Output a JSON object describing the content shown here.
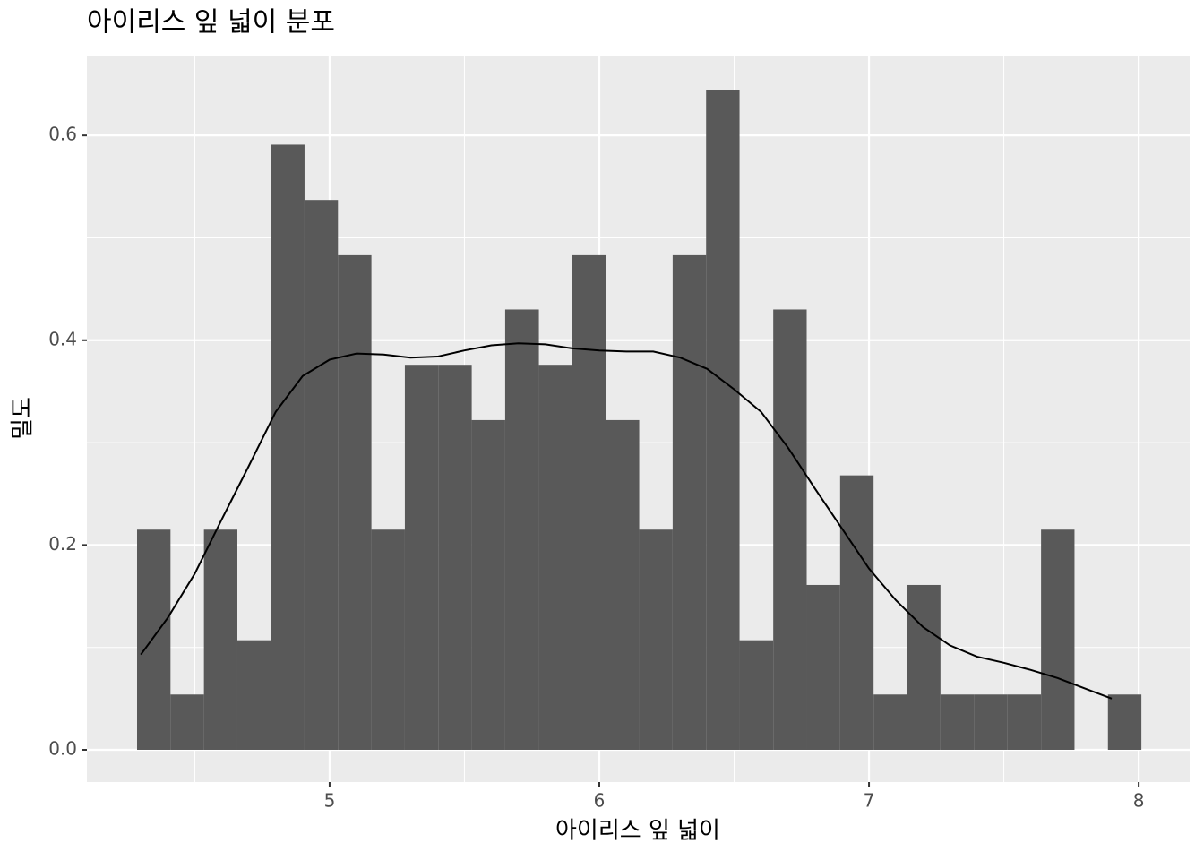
{
  "chart_data": {
    "type": "histogram",
    "title": "아이리스 잎 넓이 분포",
    "x_label": "아이리스 잎 넓이",
    "y_label": "밀도",
    "bins": [
      4.286,
      4.41,
      4.534,
      4.658,
      4.782,
      4.907,
      5.031,
      5.155,
      5.279,
      5.403,
      5.527,
      5.651,
      5.776,
      5.9,
      6.024,
      6.148,
      6.272,
      6.396,
      6.52,
      6.645,
      6.769,
      6.893,
      7.017,
      7.141,
      7.265,
      7.389,
      7.514,
      7.638,
      7.762,
      7.886,
      8.01
    ],
    "values": [
      0.215,
      0.054,
      0.215,
      0.107,
      0.591,
      0.537,
      0.483,
      0.215,
      0.376,
      0.376,
      0.322,
      0.43,
      0.376,
      0.483,
      0.322,
      0.215,
      0.483,
      0.644,
      0.107,
      0.43,
      0.161,
      0.268,
      0.054,
      0.161,
      0.054,
      0.054,
      0.054,
      0.215,
      0,
      0.054
    ],
    "color": "#595959",
    "density": {
      "color": "#000000",
      "x": [
        4.3,
        4.4,
        4.5,
        4.6,
        4.7,
        4.8,
        4.9,
        5.0,
        5.1,
        5.2,
        5.3,
        5.4,
        5.5,
        5.6,
        5.7,
        5.8,
        5.9,
        6.0,
        6.1,
        6.2,
        6.3,
        6.4,
        6.5,
        6.6,
        6.7,
        6.8,
        6.9,
        7.0,
        7.1,
        7.2,
        7.3,
        7.4,
        7.5,
        7.6,
        7.7,
        7.8,
        7.9
      ],
      "y": [
        0.093,
        0.129,
        0.172,
        0.225,
        0.277,
        0.33,
        0.365,
        0.381,
        0.387,
        0.386,
        0.383,
        0.384,
        0.39,
        0.395,
        0.397,
        0.396,
        0.392,
        0.39,
        0.389,
        0.389,
        0.383,
        0.372,
        0.352,
        0.33,
        0.295,
        0.255,
        0.216,
        0.177,
        0.146,
        0.12,
        0.102,
        0.091,
        0.085,
        0.078,
        0.07,
        0.06,
        0.05
      ]
    },
    "xlim": [
      4.1,
      8.189
    ],
    "ylim": [
      -0.0315,
      0.678
    ],
    "xticks": [
      5,
      6,
      7,
      8
    ],
    "yticks": [
      {
        "value": 0,
        "label": "0.0"
      },
      {
        "value": 0.2,
        "label": "0.2"
      },
      {
        "value": 0.4,
        "label": "0.4"
      },
      {
        "value": 0.6,
        "label": "0.6"
      }
    ],
    "grid": true
  }
}
